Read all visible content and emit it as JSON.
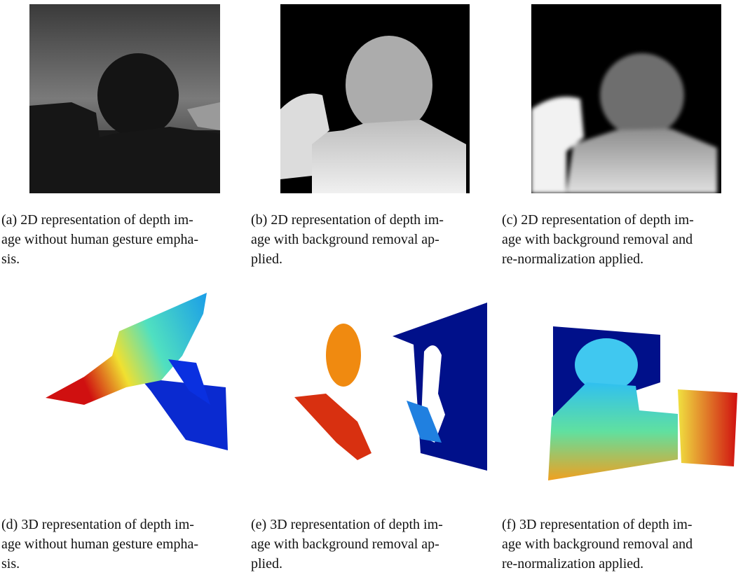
{
  "figure": {
    "subfigures": [
      {
        "caption_lines": [
          "(a) 2D representation of depth im-",
          "age without human gesture empha-",
          "sis."
        ]
      },
      {
        "caption_lines": [
          "(b) 2D representation of depth im-",
          "age with background removal ap-",
          "plied."
        ]
      },
      {
        "caption_lines": [
          "(c) 2D representation of depth im-",
          "age with background removal and",
          "re-normalization applied."
        ]
      },
      {
        "caption_lines": [
          "(d) 3D representation of depth im-",
          "age without human gesture empha-",
          "sis."
        ]
      },
      {
        "caption_lines": [
          "(e) 3D representation of depth im-",
          "age with background removal ap-",
          "plied."
        ]
      },
      {
        "caption_lines": [
          "(f) 3D representation of depth im-",
          "age with background removal and",
          "re-normalization applied."
        ]
      }
    ]
  }
}
